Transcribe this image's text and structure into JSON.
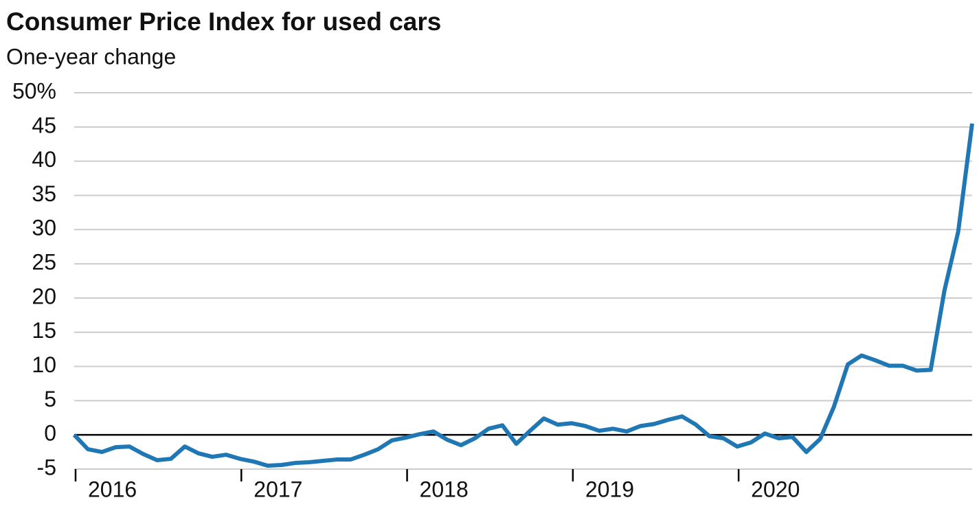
{
  "chart_data": {
    "type": "line",
    "title": "Consumer Price Index for used cars",
    "subtitle": "One-year change",
    "x": [
      2016,
      2016.083,
      2016.167,
      2016.25,
      2016.333,
      2016.417,
      2016.5,
      2016.583,
      2016.667,
      2016.75,
      2016.833,
      2016.917,
      2017,
      2017.083,
      2017.167,
      2017.25,
      2017.333,
      2017.417,
      2017.5,
      2017.583,
      2017.667,
      2017.75,
      2017.833,
      2017.917,
      2018,
      2018.083,
      2018.167,
      2018.25,
      2018.333,
      2018.417,
      2018.5,
      2018.583,
      2018.667,
      2018.75,
      2018.833,
      2018.917,
      2019,
      2019.083,
      2019.167,
      2019.25,
      2019.333,
      2019.417,
      2019.5,
      2019.583,
      2019.667,
      2019.75,
      2019.833,
      2019.917,
      2020,
      2020.083,
      2020.167,
      2020.25,
      2020.333,
      2020.417,
      2020.5,
      2020.583,
      2020.667,
      2020.75,
      2020.833,
      2020.917,
      2021,
      2021.083,
      2021.167,
      2021.25,
      2021.333,
      2021.417
    ],
    "series": [
      {
        "name": "Used cars",
        "color": "#1f77b4",
        "values": [
          0,
          -2.1,
          -2.5,
          -1.8,
          -1.7,
          -2.8,
          -3.7,
          -3.5,
          -1.7,
          -2.7,
          -3.2,
          -2.9,
          -3.5,
          -3.9,
          -4.5,
          -4.4,
          -4.1,
          -4.0,
          -3.8,
          -3.6,
          -3.6,
          -2.9,
          -2.1,
          -0.8,
          -0.4,
          0.1,
          0.5,
          -0.7,
          -1.5,
          -0.5,
          0.9,
          1.4,
          -1.3,
          0.6,
          2.4,
          1.5,
          1.7,
          1.3,
          0.6,
          0.9,
          0.5,
          1.3,
          1.6,
          2.2,
          2.7,
          1.5,
          -0.2,
          -0.5,
          -1.7,
          -1.1,
          0.2,
          -0.5,
          -0.3,
          -2.5,
          -0.6,
          4.1,
          10.3,
          11.6,
          10.9,
          10.1,
          10.1,
          9.4,
          9.5,
          21.1,
          29.7,
          45.5
        ]
      }
    ],
    "xlim": [
      2016,
      2021.417
    ],
    "xticks": [
      2016,
      2017,
      2018,
      2019,
      2020
    ],
    "ylim": [
      -5,
      50
    ],
    "yticks": [
      -5,
      0,
      5,
      10,
      15,
      20,
      25,
      30,
      35,
      40,
      45,
      {
        "value": 50,
        "label": "50%"
      }
    ],
    "grid": true
  }
}
